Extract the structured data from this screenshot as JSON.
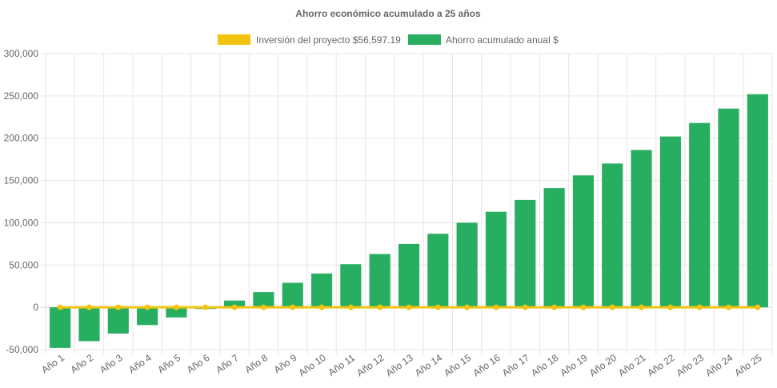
{
  "chart_data": {
    "type": "bar",
    "title": "Ahorro económico acumulado a 25 años",
    "categories": [
      "Año 1",
      "Año 2",
      "Año 3",
      "Año 4",
      "Año 5",
      "Año 6",
      "Año 7",
      "Año 8",
      "Año 9",
      "Año 10",
      "Año 11",
      "Año 12",
      "Año 13",
      "Año 14",
      "Año 15",
      "Año 16",
      "Año 17",
      "Año 18",
      "Año 19",
      "Año 20",
      "Año 21",
      "Año 22",
      "Año 23",
      "Año 24",
      "Año 25"
    ],
    "series": [
      {
        "name": "Inversión del proyecto $56,597.19",
        "kind": "line",
        "color": "#f1c40f",
        "values": [
          0,
          0,
          0,
          0,
          0,
          0,
          0,
          0,
          0,
          0,
          0,
          0,
          0,
          0,
          0,
          0,
          0,
          0,
          0,
          0,
          0,
          0,
          0,
          0,
          0
        ]
      },
      {
        "name": "Ahorro acumulado anual $",
        "kind": "bar",
        "color": "#27ae60",
        "values": [
          -48000,
          -40000,
          -31000,
          -21000,
          -12000,
          -2000,
          8000,
          18000,
          29000,
          40000,
          51000,
          63000,
          75000,
          87000,
          100000,
          113000,
          127000,
          141000,
          156000,
          170000,
          186000,
          202000,
          218000,
          235000,
          252000
        ]
      }
    ],
    "yticks": [
      "-50,000",
      "0",
      "50,000",
      "100,000",
      "150,000",
      "200,000",
      "250,000",
      "300,000"
    ],
    "ylim": [
      -50000,
      300000
    ],
    "grid": true,
    "legend_position": "top"
  }
}
